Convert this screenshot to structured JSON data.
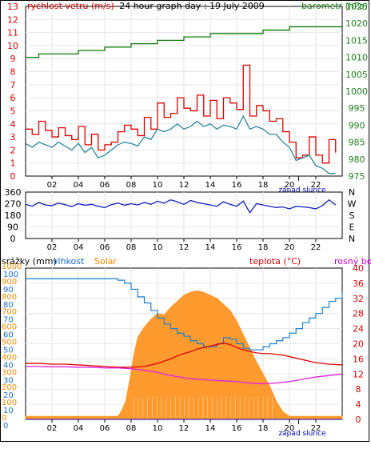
{
  "colors": {
    "wind": "#e00000",
    "wind_avg": "#1a7f9a",
    "pressure": "#0a7a0a",
    "direction": "#1020c0",
    "humidity": "#1a7fd0",
    "solar": "#ff9a2e",
    "temperature": "#e00000",
    "dewpoint": "#e020e0",
    "rain": "#0000c0",
    "text_blue": "#1a6fd0",
    "text_orange": "#ff8a00",
    "text_red": "#e00000",
    "text_magenta": "#d000d0",
    "text_green": "#208020"
  },
  "chart_data": [
    {
      "type": "line",
      "title": "24 hour graph day : 19 July 2009",
      "ylabel_left": "rychlost vetru (m/s)",
      "ylabel_right": "barometr (hPa)",
      "ylim_left": [
        0,
        13
      ],
      "ylim_right": [
        975,
        1025
      ],
      "yticks_left": [
        "0",
        "1",
        "2",
        "3",
        "4",
        "5",
        "6",
        "7",
        "8",
        "9",
        "10",
        "11",
        "12",
        "13"
      ],
      "yticks_right": [
        "975",
        "980",
        "985",
        "990",
        "995",
        "1000",
        "1005",
        "1010",
        "1015",
        "1020",
        "1025"
      ],
      "xticks": [
        "02",
        "04",
        "06",
        "08",
        "10",
        "12",
        "14",
        "16",
        "18",
        "20",
        "22"
      ],
      "xlim": [
        0,
        24
      ],
      "sunset_label": "západ slunce",
      "series": [
        {
          "name": "wind_gust",
          "x": [
            0,
            0.5,
            1,
            1.5,
            2,
            2.5,
            3,
            3.5,
            4,
            4.5,
            5,
            5.5,
            6,
            6.5,
            7,
            7.5,
            8,
            8.5,
            9,
            9.5,
            10,
            10.5,
            11,
            11.5,
            12,
            12.5,
            13,
            13.5,
            14,
            14.5,
            15,
            15.5,
            16,
            16.5,
            17,
            17.5,
            18,
            18.5,
            19,
            19.5,
            20,
            20.5,
            21,
            21.5,
            22,
            22.5,
            23,
            23.5
          ],
          "values": [
            3.6,
            3.2,
            4.2,
            3.5,
            3.0,
            3.7,
            3.1,
            2.8,
            3.8,
            2.4,
            3.2,
            2.0,
            2.4,
            2.6,
            3.4,
            3.9,
            3.6,
            3.1,
            4.5,
            3.6,
            5.6,
            4.5,
            4.8,
            6.0,
            5.2,
            5.0,
            6.2,
            4.6,
            5.8,
            4.4,
            6.0,
            5.6,
            5.1,
            8.5,
            4.6,
            5.4,
            5.0,
            4.2,
            4.4,
            3.4,
            2.6,
            1.4,
            1.6,
            3.0,
            1.6,
            1.0,
            2.8,
            1.8
          ]
        },
        {
          "name": "wind_avg",
          "x": [
            0,
            0.5,
            1,
            1.5,
            2,
            2.5,
            3,
            3.5,
            4,
            4.5,
            5,
            5.5,
            6,
            6.5,
            7,
            7.5,
            8,
            8.5,
            9,
            9.5,
            10,
            10.5,
            11,
            11.5,
            12,
            12.5,
            13,
            13.5,
            14,
            14.5,
            15,
            15.5,
            16,
            16.5,
            17,
            17.5,
            18,
            18.5,
            19,
            19.5,
            20,
            20.5,
            21,
            21.5,
            22,
            22.5,
            23,
            23.5
          ],
          "values": [
            2.5,
            2.2,
            2.6,
            2.4,
            2.2,
            2.6,
            2.3,
            2.0,
            2.5,
            1.8,
            2.2,
            1.4,
            1.6,
            2.0,
            2.4,
            2.6,
            2.5,
            2.3,
            3.0,
            2.8,
            3.6,
            3.4,
            3.6,
            4.0,
            3.6,
            3.8,
            4.2,
            3.8,
            4.0,
            3.6,
            3.9,
            3.8,
            3.6,
            4.6,
            3.6,
            3.8,
            3.6,
            3.2,
            3.2,
            2.6,
            2.2,
            1.2,
            1.4,
            1.6,
            0.8,
            0.6,
            0.2,
            0.2
          ]
        },
        {
          "name": "pressure",
          "axis": "right",
          "x": [
            0,
            1,
            2,
            4,
            6,
            8,
            10,
            12,
            13,
            14,
            16,
            18,
            20,
            21,
            22,
            24
          ],
          "values": [
            1010,
            1011,
            1011,
            1012,
            1013,
            1014,
            1015,
            1016,
            1016,
            1017,
            1017,
            1018,
            1019,
            1019,
            1019,
            1019
          ]
        }
      ]
    },
    {
      "type": "line",
      "ylabel_left_ticks": [
        "0",
        "90",
        "180",
        "270",
        "360"
      ],
      "ylabel_right_ticks": [
        "N",
        "W",
        "S",
        "E",
        "N"
      ],
      "ylim": [
        0,
        360
      ],
      "xticks": [
        "02",
        "04",
        "06",
        "08",
        "10",
        "12",
        "14",
        "16",
        "18",
        "20",
        "22"
      ],
      "xlim": [
        0,
        24
      ],
      "series": [
        {
          "name": "wind_direction",
          "x": [
            0,
            0.5,
            1,
            1.5,
            2,
            2.5,
            3,
            3.5,
            4,
            4.5,
            5,
            5.5,
            6,
            6.5,
            7,
            7.5,
            8,
            8.5,
            9,
            9.5,
            10,
            10.5,
            11,
            11.5,
            12,
            12.5,
            13,
            13.5,
            14,
            14.5,
            15,
            15.5,
            16,
            16.5,
            17,
            17.5,
            18,
            18.5,
            19,
            19.5,
            20,
            20.5,
            21,
            21.5,
            22,
            22.5,
            23,
            23.5
          ],
          "values": [
            265,
            250,
            280,
            260,
            255,
            275,
            262,
            248,
            270,
            258,
            265,
            250,
            240,
            262,
            275,
            258,
            270,
            260,
            280,
            265,
            290,
            275,
            300,
            285,
            265,
            295,
            280,
            270,
            260,
            250,
            285,
            265,
            250,
            290,
            200,
            270,
            260,
            250,
            240,
            245,
            230,
            250,
            245,
            240,
            230,
            255,
            300,
            260
          ]
        }
      ]
    },
    {
      "type": "line",
      "ylabel_header_left": [
        "srážky (mm)",
        "vlhkost",
        "Solar"
      ],
      "ylabel_header_right": [
        "teplota (°C)",
        "rosný bod"
      ],
      "yticks_left_solar": [
        "0",
        "100",
        "200",
        "300",
        "400",
        "500",
        "600",
        "700",
        "800",
        "900",
        "1000"
      ],
      "yticks_left_humidity": [
        "0",
        "10",
        "20",
        "30",
        "40",
        "50",
        "60",
        "70",
        "80",
        "90",
        "100"
      ],
      "yticks_right_temp": [
        "0",
        "4",
        "8",
        "12",
        "16",
        "20",
        "24",
        "28",
        "32",
        "36",
        "40"
      ],
      "xticks": [
        "02",
        "04",
        "06",
        "08",
        "10",
        "12",
        "14",
        "16",
        "18",
        "20",
        "22"
      ],
      "xlim": [
        0,
        24
      ],
      "sunset_label": "západ slunce",
      "series": [
        {
          "name": "solar",
          "x": [
            0,
            6,
            7,
            7.3,
            7.6,
            7.9,
            8.2,
            8.5,
            9,
            9.5,
            10,
            10.5,
            11,
            11.5,
            12,
            12.5,
            13,
            13.5,
            14,
            14.5,
            15,
            15.5,
            16,
            16.5,
            17,
            17.5,
            18,
            18.5,
            19,
            19.5,
            20,
            24
          ],
          "values": [
            20,
            20,
            20,
            60,
            120,
            260,
            420,
            540,
            610,
            660,
            700,
            690,
            740,
            780,
            820,
            840,
            850,
            840,
            820,
            800,
            760,
            720,
            650,
            560,
            470,
            380,
            300,
            220,
            120,
            50,
            20,
            20
          ]
        },
        {
          "name": "humidity",
          "x": [
            0,
            2,
            4,
            6,
            7,
            7.5,
            8,
            8.5,
            9,
            9.5,
            10,
            10.5,
            11,
            11.5,
            12,
            12.5,
            13,
            13.5,
            14,
            14.5,
            15,
            15.5,
            16,
            16.5,
            17,
            17.5,
            18,
            18.5,
            19,
            19.5,
            20,
            20.5,
            21,
            21.5,
            22,
            22.5,
            23,
            23.5,
            24
          ],
          "values": [
            93,
            93,
            93,
            93,
            92,
            90,
            86,
            81,
            77,
            72,
            67,
            63,
            60,
            57,
            55,
            52,
            50,
            48,
            48,
            50,
            54,
            53,
            50,
            47,
            46,
            46,
            48,
            50,
            52,
            54,
            57,
            60,
            64,
            67,
            70,
            74,
            78,
            80,
            84
          ]
        },
        {
          "name": "temperature",
          "axis": "right",
          "x": [
            0,
            1,
            2,
            3,
            4,
            5,
            6,
            7,
            8,
            9,
            10,
            10.5,
            11,
            11.5,
            12,
            12.5,
            13,
            13.5,
            14,
            14.5,
            15,
            15.5,
            16,
            16.5,
            17,
            17.5,
            18,
            18.5,
            19,
            19.5,
            20,
            21,
            22,
            23,
            24
          ],
          "values": [
            14.8,
            14.8,
            14.6,
            14.6,
            14.4,
            14.2,
            14.0,
            13.8,
            13.8,
            14.0,
            14.8,
            15.4,
            16.0,
            16.8,
            17.4,
            17.9,
            18.6,
            19.0,
            19.4,
            19.8,
            20.2,
            19.8,
            19.0,
            18.4,
            18.0,
            17.6,
            17.4,
            17.4,
            17.2,
            17.0,
            16.6,
            15.8,
            15.0,
            14.6,
            14.4
          ]
        },
        {
          "name": "dewpoint",
          "axis": "right",
          "x": [
            0,
            1,
            2,
            3,
            4,
            5,
            6,
            7,
            8,
            9,
            10,
            11,
            12,
            13,
            14,
            15,
            16,
            17,
            18,
            19,
            20,
            21,
            22,
            23,
            24
          ],
          "values": [
            14.0,
            14.0,
            13.9,
            13.9,
            13.8,
            13.8,
            13.6,
            13.6,
            13.4,
            13.0,
            12.4,
            11.6,
            11.0,
            10.6,
            10.4,
            10.2,
            10.0,
            9.6,
            9.4,
            9.6,
            10.0,
            10.6,
            11.2,
            11.6,
            12.0
          ]
        },
        {
          "name": "rain",
          "x": [
            0,
            24
          ],
          "values": [
            0,
            0
          ]
        }
      ]
    }
  ]
}
